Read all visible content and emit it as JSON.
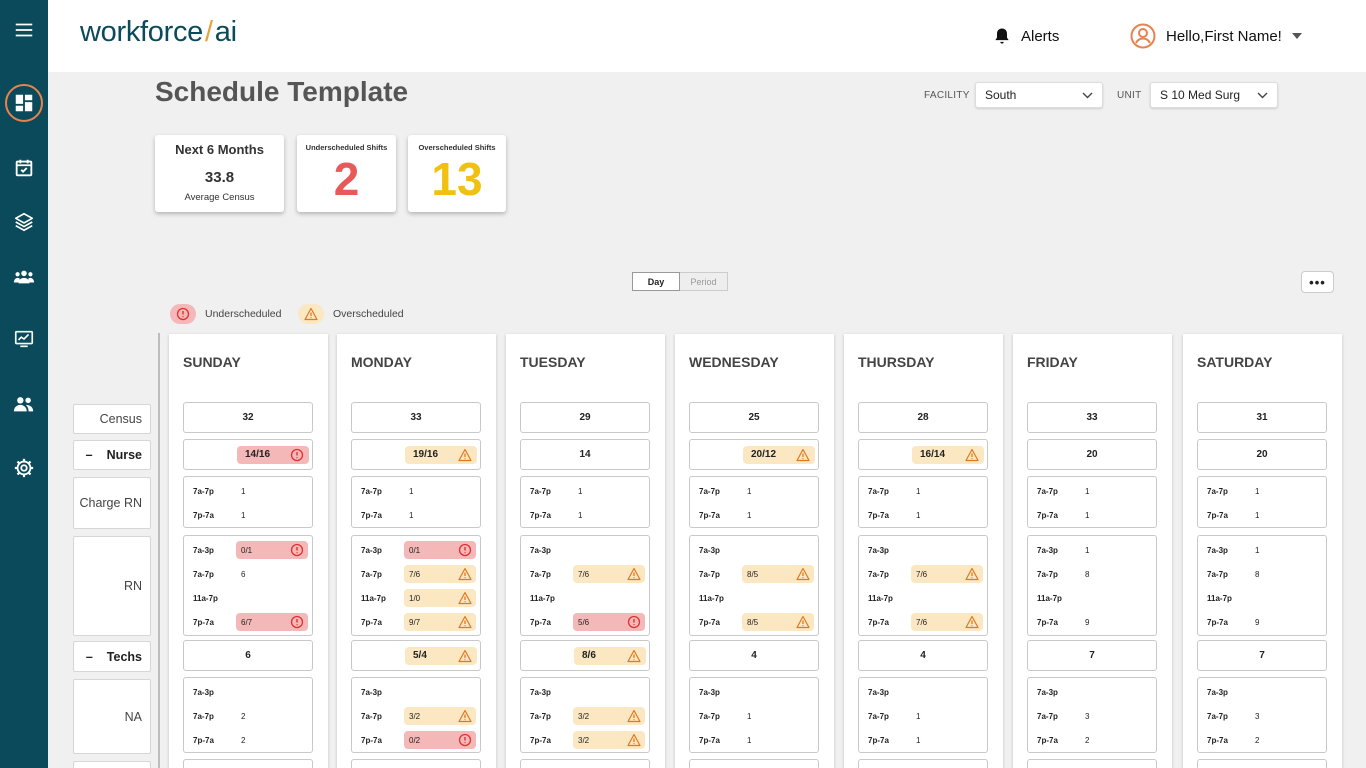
{
  "brand": {
    "logo_part1": "workforce",
    "logo_slash": "/",
    "logo_part2": "ai"
  },
  "header": {
    "alerts_label": "Alerts",
    "user_greeting": "Hello,First Name!"
  },
  "page": {
    "title": "Schedule Template"
  },
  "filters": {
    "facility_label": "FACILITY",
    "facility_value": "South",
    "unit_label": "UNIT",
    "unit_value": "S 10 Med Surg"
  },
  "stats": {
    "census_title": "Next 6 Months",
    "census_value": "33.8",
    "census_caption": "Average Census",
    "under_title": "Underscheduled Shifts",
    "under_value": "2",
    "over_title": "Overscheduled Shifts",
    "over_value": "13"
  },
  "view_toggle": {
    "day": "Day",
    "period": "Period",
    "active": "day"
  },
  "more_label": "•••",
  "legend": {
    "under": "Underscheduled",
    "over": "Overscheduled"
  },
  "row_labels": {
    "census": "Census",
    "nurse": "Nurse",
    "charge_rn": "Charge RN",
    "rn": "RN",
    "techs": "Techs",
    "na": "NA",
    "dash": "–"
  },
  "colors": {
    "sidebar": "#0b4a5a",
    "accent": "#e8834e",
    "under_red": "#e85a5a",
    "over_amber": "#f2c010",
    "badge_red": "#f5b8b8",
    "badge_amber": "#fbe8c2"
  },
  "icons": {
    "menu": "hamburger-icon",
    "dashboard": "dashboard-icon",
    "calendar": "calendar-check-icon",
    "layers": "layers-icon",
    "team": "team-icon",
    "reports": "chart-check-icon",
    "people": "people-icon",
    "settings": "gear-icon",
    "bell": "bell-icon",
    "user": "user-circle-icon",
    "under": "alert-circle-icon",
    "over": "warning-triangle-icon"
  },
  "days": [
    {
      "name": "SUNDAY",
      "census": "32",
      "nurse": {
        "value": "14/16",
        "status": "under"
      },
      "charge": [
        {
          "label": "7a-7p",
          "value": "1",
          "status": ""
        },
        {
          "label": "7p-7a",
          "value": "1",
          "status": ""
        }
      ],
      "rn": [
        {
          "label": "7a-3p",
          "value": "0/1",
          "status": "under"
        },
        {
          "label": "7a-7p",
          "value": "6",
          "status": ""
        },
        {
          "label": "11a-7p",
          "value": "",
          "status": ""
        },
        {
          "label": "7p-7a",
          "value": "6/7",
          "status": "under"
        }
      ],
      "techs": {
        "value": "6",
        "status": ""
      },
      "na": [
        {
          "label": "7a-3p",
          "value": "",
          "status": ""
        },
        {
          "label": "7a-7p",
          "value": "2",
          "status": ""
        },
        {
          "label": "7p-7a",
          "value": "2",
          "status": ""
        }
      ]
    },
    {
      "name": "MONDAY",
      "census": "33",
      "nurse": {
        "value": "19/16",
        "status": "over"
      },
      "charge": [
        {
          "label": "7a-7p",
          "value": "1",
          "status": ""
        },
        {
          "label": "7p-7a",
          "value": "1",
          "status": ""
        }
      ],
      "rn": [
        {
          "label": "7a-3p",
          "value": "0/1",
          "status": "under"
        },
        {
          "label": "7a-7p",
          "value": "7/6",
          "status": "over"
        },
        {
          "label": "11a-7p",
          "value": "1/0",
          "status": "over"
        },
        {
          "label": "7p-7a",
          "value": "9/7",
          "status": "over"
        }
      ],
      "techs": {
        "value": "5/4",
        "status": "over"
      },
      "na": [
        {
          "label": "7a-3p",
          "value": "",
          "status": ""
        },
        {
          "label": "7a-7p",
          "value": "3/2",
          "status": "over"
        },
        {
          "label": "7p-7a",
          "value": "0/2",
          "status": "under"
        }
      ]
    },
    {
      "name": "TUESDAY",
      "census": "29",
      "nurse": {
        "value": "14",
        "status": ""
      },
      "charge": [
        {
          "label": "7a-7p",
          "value": "1",
          "status": ""
        },
        {
          "label": "7p-7a",
          "value": "1",
          "status": ""
        }
      ],
      "rn": [
        {
          "label": "7a-3p",
          "value": "",
          "status": ""
        },
        {
          "label": "7a-7p",
          "value": "7/6",
          "status": "over"
        },
        {
          "label": "11a-7p",
          "value": "",
          "status": ""
        },
        {
          "label": "7p-7a",
          "value": "5/6",
          "status": "under"
        }
      ],
      "techs": {
        "value": "8/6",
        "status": "over"
      },
      "na": [
        {
          "label": "7a-3p",
          "value": "",
          "status": ""
        },
        {
          "label": "7a-7p",
          "value": "3/2",
          "status": "over"
        },
        {
          "label": "7p-7a",
          "value": "3/2",
          "status": "over"
        }
      ]
    },
    {
      "name": "WEDNESDAY",
      "census": "25",
      "nurse": {
        "value": "20/12",
        "status": "over"
      },
      "charge": [
        {
          "label": "7a-7p",
          "value": "1",
          "status": ""
        },
        {
          "label": "7p-7a",
          "value": "1",
          "status": ""
        }
      ],
      "rn": [
        {
          "label": "7a-3p",
          "value": "",
          "status": ""
        },
        {
          "label": "7a-7p",
          "value": "8/5",
          "status": "over"
        },
        {
          "label": "11a-7p",
          "value": "",
          "status": ""
        },
        {
          "label": "7p-7a",
          "value": "8/5",
          "status": "over"
        }
      ],
      "techs": {
        "value": "4",
        "status": ""
      },
      "na": [
        {
          "label": "7a-3p",
          "value": "",
          "status": ""
        },
        {
          "label": "7a-7p",
          "value": "1",
          "status": ""
        },
        {
          "label": "7p-7a",
          "value": "1",
          "status": ""
        }
      ]
    },
    {
      "name": "THURSDAY",
      "census": "28",
      "nurse": {
        "value": "16/14",
        "status": "over"
      },
      "charge": [
        {
          "label": "7a-7p",
          "value": "1",
          "status": ""
        },
        {
          "label": "7p-7a",
          "value": "1",
          "status": ""
        }
      ],
      "rn": [
        {
          "label": "7a-3p",
          "value": "",
          "status": ""
        },
        {
          "label": "7a-7p",
          "value": "7/6",
          "status": "over"
        },
        {
          "label": "11a-7p",
          "value": "",
          "status": ""
        },
        {
          "label": "7p-7a",
          "value": "7/6",
          "status": "over"
        }
      ],
      "techs": {
        "value": "4",
        "status": ""
      },
      "na": [
        {
          "label": "7a-3p",
          "value": "",
          "status": ""
        },
        {
          "label": "7a-7p",
          "value": "1",
          "status": ""
        },
        {
          "label": "7p-7a",
          "value": "1",
          "status": ""
        }
      ]
    },
    {
      "name": "FRIDAY",
      "census": "33",
      "nurse": {
        "value": "20",
        "status": ""
      },
      "charge": [
        {
          "label": "7a-7p",
          "value": "1",
          "status": ""
        },
        {
          "label": "7p-7a",
          "value": "1",
          "status": ""
        }
      ],
      "rn": [
        {
          "label": "7a-3p",
          "value": "1",
          "status": ""
        },
        {
          "label": "7a-7p",
          "value": "8",
          "status": ""
        },
        {
          "label": "11a-7p",
          "value": "",
          "status": ""
        },
        {
          "label": "7p-7a",
          "value": "9",
          "status": ""
        }
      ],
      "techs": {
        "value": "7",
        "status": ""
      },
      "na": [
        {
          "label": "7a-3p",
          "value": "",
          "status": ""
        },
        {
          "label": "7a-7p",
          "value": "3",
          "status": ""
        },
        {
          "label": "7p-7a",
          "value": "2",
          "status": ""
        }
      ]
    },
    {
      "name": "SATURDAY",
      "census": "31",
      "nurse": {
        "value": "20",
        "status": ""
      },
      "charge": [
        {
          "label": "7a-7p",
          "value": "1",
          "status": ""
        },
        {
          "label": "7p-7a",
          "value": "1",
          "status": ""
        }
      ],
      "rn": [
        {
          "label": "7a-3p",
          "value": "1",
          "status": ""
        },
        {
          "label": "7a-7p",
          "value": "8",
          "status": ""
        },
        {
          "label": "11a-7p",
          "value": "",
          "status": ""
        },
        {
          "label": "7p-7a",
          "value": "9",
          "status": ""
        }
      ],
      "techs": {
        "value": "7",
        "status": ""
      },
      "na": [
        {
          "label": "7a-3p",
          "value": "",
          "status": ""
        },
        {
          "label": "7a-7p",
          "value": "3",
          "status": ""
        },
        {
          "label": "7p-7a",
          "value": "2",
          "status": ""
        }
      ]
    }
  ]
}
